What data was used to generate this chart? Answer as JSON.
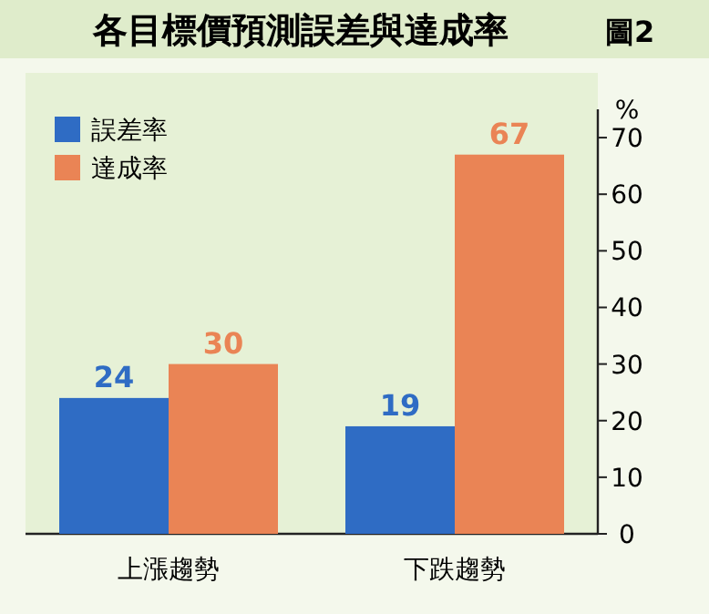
{
  "chart_data": {
    "type": "bar",
    "title": "各目標價預測誤差與達成率",
    "subtitle": "圖2",
    "ylabel": "%",
    "categories": [
      "上漲趨勢",
      "下跌趨勢"
    ],
    "series": [
      {
        "name": "誤差率",
        "color": "#2f6cc4",
        "values": [
          24,
          19
        ]
      },
      {
        "name": "達成率",
        "color": "#ea8455",
        "values": [
          30,
          67
        ]
      }
    ],
    "ylim": [
      0,
      75
    ],
    "yticks": [
      0,
      10,
      20,
      30,
      40,
      50,
      60,
      70
    ],
    "data_labels": true,
    "legend": "top left",
    "grid": false
  }
}
